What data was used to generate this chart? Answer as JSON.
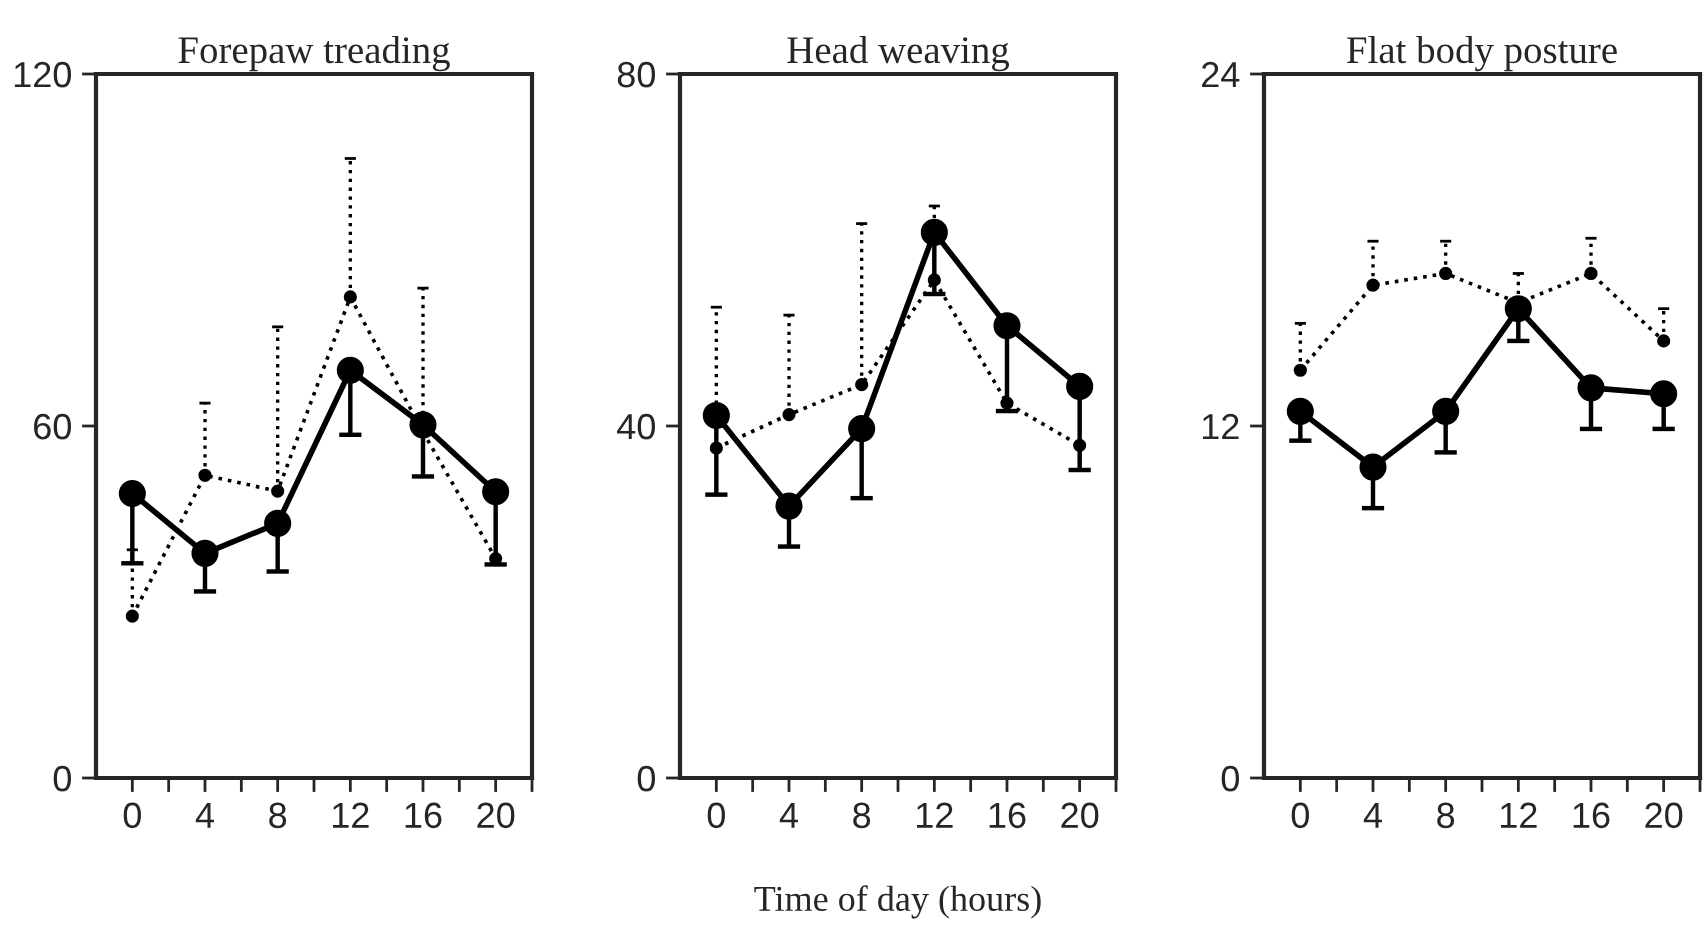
{
  "chart_data": [
    {
      "type": "line",
      "title": "Forepaw treading",
      "x": [
        0,
        4,
        8,
        12,
        16,
        20
      ],
      "marker": "circle",
      "grid": false,
      "legend": false,
      "xlim": [
        -2,
        22
      ],
      "xticks": [
        0,
        {
          "value": 2,
          "label": null
        },
        4,
        {
          "value": 6,
          "label": null
        },
        8,
        {
          "value": 10,
          "label": null
        },
        12,
        {
          "value": 14,
          "label": null
        },
        16,
        {
          "value": 18,
          "label": null
        },
        20,
        {
          "value": 22,
          "label": null
        }
      ],
      "ylim": [
        0,
        120
      ],
      "yticks": [
        0,
        60,
        120
      ],
      "series": [
        {
          "color": "#000000",
          "line_style": "solid",
          "values": [
            48.5,
            38.3,
            43.4,
            69.5,
            60.2,
            48.8
          ],
          "errors": [
            [
              36.6,
              48.5
            ],
            [
              31.8,
              38.3
            ],
            [
              35.2,
              43.4
            ],
            [
              58.5,
              69.5
            ],
            [
              51.4,
              60.2
            ],
            [
              36.4,
              48.8
            ]
          ]
        },
        {
          "color": "#000000",
          "line_style": "dotted",
          "values": [
            27.6,
            51.6,
            48.9,
            82.0,
            59.0,
            37.4
          ],
          "errors": [
            [
              27.6,
              38.9
            ],
            [
              51.6,
              63.9
            ],
            [
              48.9,
              76.9
            ],
            [
              82.0,
              105.6
            ],
            [
              59.0,
              83.5
            ],
            null
          ]
        }
      ]
    },
    {
      "type": "line",
      "title": "Head weaving",
      "xlabel": "Time of day (hours)",
      "x": [
        0,
        4,
        8,
        12,
        16,
        20
      ],
      "marker": "circle",
      "grid": false,
      "legend": false,
      "xlim": [
        -2,
        22
      ],
      "xticks": [
        0,
        {
          "value": 2,
          "label": null
        },
        4,
        {
          "value": 6,
          "label": null
        },
        8,
        {
          "value": 10,
          "label": null
        },
        12,
        {
          "value": 14,
          "label": null
        },
        16,
        {
          "value": 18,
          "label": null
        },
        20,
        {
          "value": 22,
          "label": null
        }
      ],
      "ylim": [
        0,
        80
      ],
      "yticks": [
        0,
        40,
        80
      ],
      "series": [
        {
          "color": "#000000",
          "line_style": "solid",
          "values": [
            41.2,
            30.9,
            39.7,
            62.0,
            51.4,
            44.5
          ],
          "errors": [
            [
              32.2,
              41.2
            ],
            [
              26.3,
              30.9
            ],
            [
              31.8,
              39.7
            ],
            [
              55.0,
              62.0
            ],
            [
              41.7,
              51.4
            ],
            [
              35.0,
              44.5
            ]
          ]
        },
        {
          "color": "#000000",
          "line_style": "dotted",
          "values": [
            37.5,
            41.3,
            44.7,
            56.6,
            42.6,
            37.8
          ],
          "errors": [
            [
              37.5,
              53.5
            ],
            [
              41.3,
              52.6
            ],
            [
              44.7,
              63.0
            ],
            [
              56.6,
              65.0
            ],
            null,
            null
          ]
        }
      ]
    },
    {
      "type": "line",
      "title": "Flat body posture",
      "x": [
        0,
        4,
        8,
        12,
        16,
        20
      ],
      "marker": "circle",
      "grid": false,
      "legend": false,
      "xlim": [
        -2,
        22
      ],
      "xticks": [
        0,
        {
          "value": 2,
          "label": null
        },
        4,
        {
          "value": 6,
          "label": null
        },
        8,
        {
          "value": 10,
          "label": null
        },
        12,
        {
          "value": 14,
          "label": null
        },
        16,
        {
          "value": 18,
          "label": null
        },
        20,
        {
          "value": 22,
          "label": null
        }
      ],
      "ylim": [
        0,
        24
      ],
      "yticks": [
        0,
        12,
        24
      ],
      "series": [
        {
          "color": "#000000",
          "line_style": "solid",
          "values": [
            12.5,
            10.6,
            12.5,
            16.0,
            13.3,
            13.1
          ],
          "errors": [
            [
              11.5,
              12.5
            ],
            [
              9.2,
              10.6
            ],
            [
              11.1,
              12.5
            ],
            [
              14.9,
              16.0
            ],
            [
              11.9,
              13.3
            ],
            [
              11.9,
              13.1
            ]
          ]
        },
        {
          "color": "#000000",
          "line_style": "dotted",
          "values": [
            13.9,
            16.8,
            17.2,
            16.2,
            17.2,
            14.9
          ],
          "errors": [
            [
              13.9,
              15.5
            ],
            [
              16.8,
              18.3
            ],
            [
              17.2,
              18.3
            ],
            [
              16.2,
              17.2
            ],
            [
              17.2,
              18.4
            ],
            [
              14.9,
              16.0
            ]
          ]
        }
      ]
    }
  ]
}
